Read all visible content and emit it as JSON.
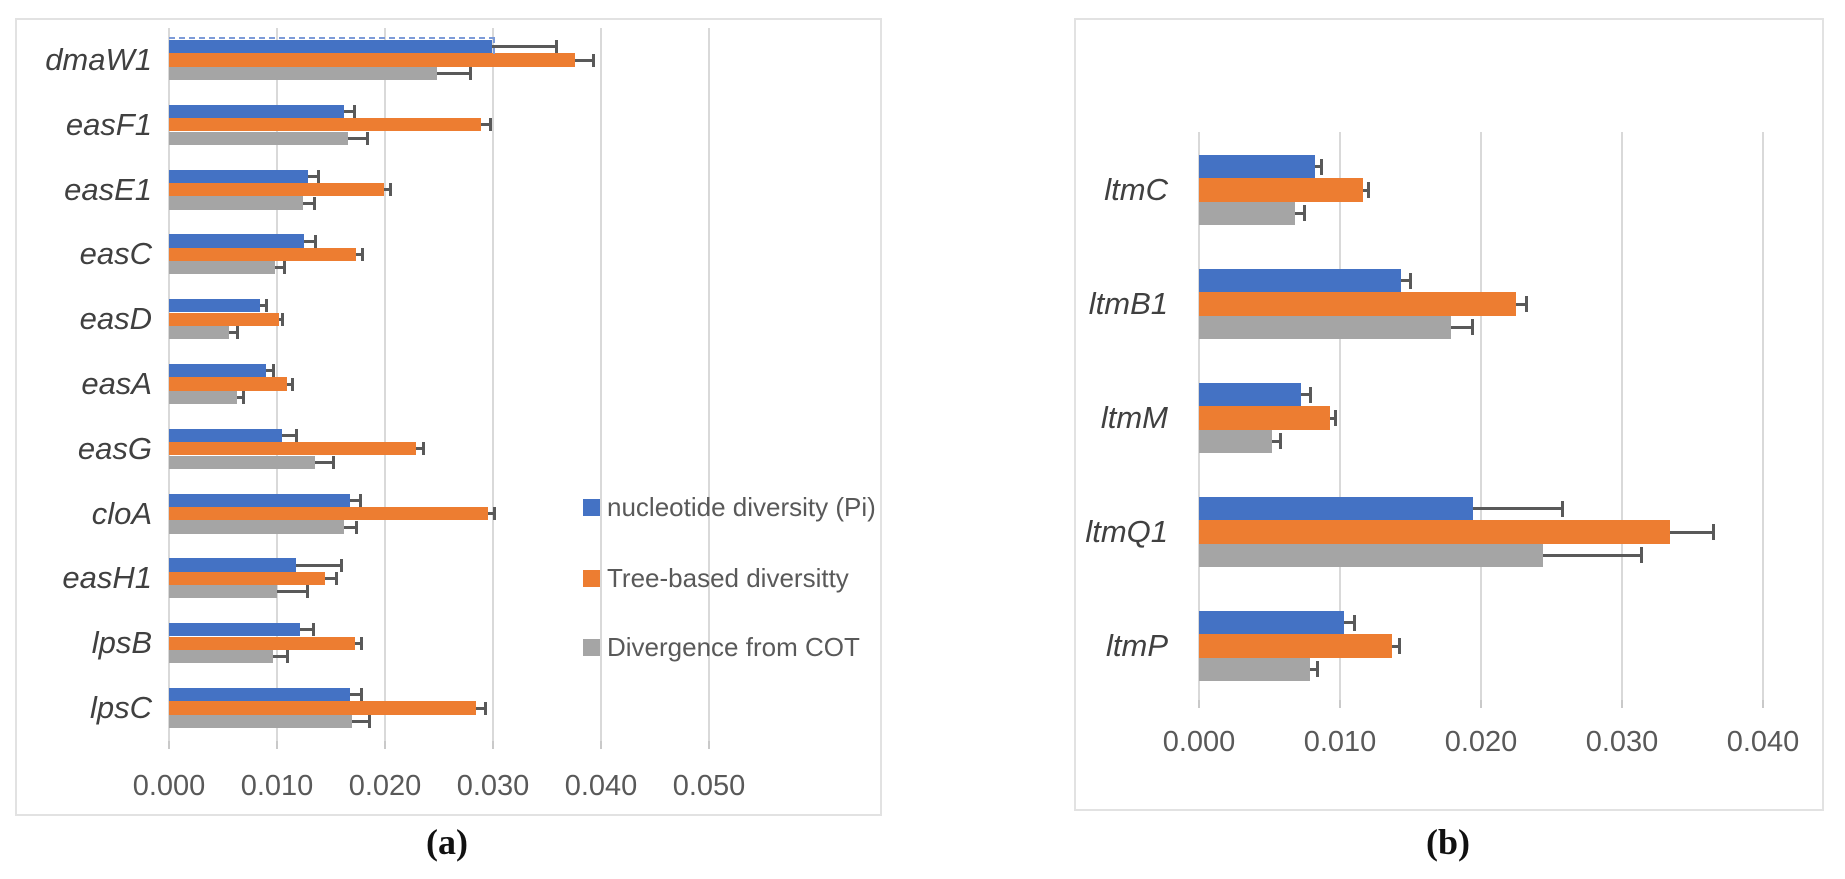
{
  "figure": {
    "panel_a_label": "(a)",
    "panel_b_label": "(b)"
  },
  "legend": {
    "items": [
      {
        "label": "nucleotide diversity (Pi)",
        "color": "#4472C4"
      },
      {
        "label": "Tree-based diversitty",
        "color": "#ED7D31"
      },
      {
        "label": "Divergence from COT",
        "color": "#A5A5A5"
      }
    ]
  },
  "colors": {
    "blue": "#4472C4",
    "orange": "#ED7D31",
    "gray": "#A5A5A5",
    "error_bar": "#595959",
    "gridline": "#d9d9d9"
  },
  "chart_data": [
    {
      "id": "a",
      "type": "bar",
      "orientation": "horizontal",
      "title": "",
      "xlabel": "",
      "ylabel": "",
      "grid": true,
      "legend_position": "right-middle",
      "xlim": [
        0,
        0.055
      ],
      "tick_values": [
        0.0,
        0.01,
        0.02,
        0.03,
        0.04,
        0.05
      ],
      "tick_labels": [
        "0.000",
        "0.010",
        "0.020",
        "0.030",
        "0.040",
        "0.050"
      ],
      "categories": [
        "dmaW1",
        "easF1",
        "easE1",
        "easC",
        "easD",
        "easA",
        "easG",
        "cloA",
        "easH1",
        "lpsB",
        "lpsC"
      ],
      "series": [
        {
          "name": "nucleotide diversity (Pi)",
          "color": "#4472C4",
          "values": [
            0.0299,
            0.0162,
            0.0129,
            0.0125,
            0.0084,
            0.009,
            0.0105,
            0.0168,
            0.0118,
            0.0121,
            0.0168
          ],
          "errors": [
            0.006,
            0.001,
            0.0009,
            0.0011,
            0.0006,
            0.0007,
            0.0013,
            0.0009,
            0.0042,
            0.0013,
            0.001
          ]
        },
        {
          "name": "Tree-based diversitty",
          "color": "#ED7D31",
          "values": [
            0.0376,
            0.0289,
            0.0199,
            0.0173,
            0.0102,
            0.0109,
            0.0229,
            0.0295,
            0.0144,
            0.0172,
            0.0284
          ],
          "errors": [
            0.0017,
            0.0009,
            0.0006,
            0.0006,
            0.0003,
            0.0005,
            0.0007,
            0.0006,
            0.0011,
            0.0006,
            0.0009
          ]
        },
        {
          "name": "Divergence from COT",
          "color": "#A5A5A5",
          "values": [
            0.0248,
            0.0166,
            0.0124,
            0.0098,
            0.0056,
            0.0063,
            0.0135,
            0.0162,
            0.01,
            0.0096,
            0.0169
          ],
          "errors": [
            0.0031,
            0.0018,
            0.0011,
            0.0009,
            0.0007,
            0.0006,
            0.0017,
            0.0012,
            0.0028,
            0.0014,
            0.0017
          ]
        }
      ],
      "annotations": [
        {
          "type": "dashed-selection-outline",
          "category": "dmaW1",
          "series": "nucleotide diversity (Pi)"
        }
      ]
    },
    {
      "id": "b",
      "type": "bar",
      "orientation": "horizontal",
      "title": "",
      "xlabel": "",
      "ylabel": "",
      "grid": true,
      "legend_position": "none",
      "xlim": [
        0,
        0.044
      ],
      "tick_values": [
        0.0,
        0.01,
        0.02,
        0.03,
        0.04
      ],
      "tick_labels": [
        "0.000",
        "0.010",
        "0.020",
        "0.030",
        "0.040"
      ],
      "categories": [
        "ltmC",
        "ltmB1",
        "ltmM",
        "ltmQ1",
        "ltmP"
      ],
      "series": [
        {
          "name": "nucleotide diversity (Pi)",
          "color": "#4472C4",
          "values": [
            0.0082,
            0.0143,
            0.0072,
            0.0194,
            0.0103
          ],
          "errors": [
            0.0005,
            0.0007,
            0.0007,
            0.0064,
            0.0007
          ]
        },
        {
          "name": "Tree-based diversitty",
          "color": "#ED7D31",
          "values": [
            0.0116,
            0.0225,
            0.0093,
            0.0334,
            0.0137
          ],
          "errors": [
            0.0004,
            0.0007,
            0.0004,
            0.0031,
            0.0005
          ]
        },
        {
          "name": "Divergence from COT",
          "color": "#A5A5A5",
          "values": [
            0.0068,
            0.0179,
            0.0052,
            0.0244,
            0.0079
          ],
          "errors": [
            0.0007,
            0.0015,
            0.0006,
            0.007,
            0.0005
          ]
        }
      ],
      "annotations": []
    }
  ]
}
